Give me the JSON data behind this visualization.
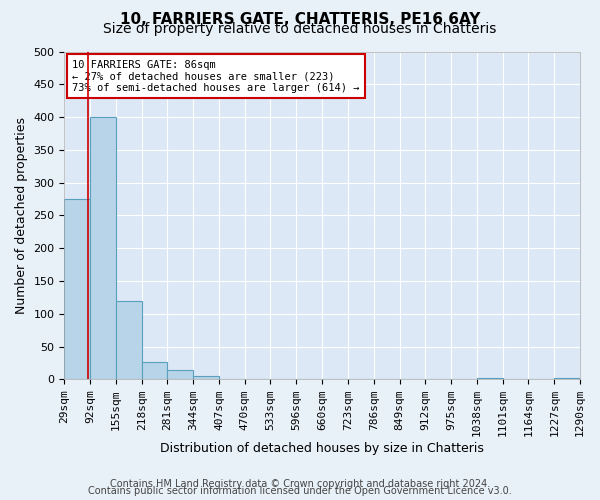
{
  "title": "10, FARRIERS GATE, CHATTERIS, PE16 6AY",
  "subtitle": "Size of property relative to detached houses in Chatteris",
  "xlabel": "Distribution of detached houses by size in Chatteris",
  "ylabel": "Number of detached properties",
  "bar_edges": [
    29,
    92,
    155,
    218,
    281,
    344,
    407,
    470,
    533,
    596,
    660,
    723,
    786,
    849,
    912,
    975,
    1038,
    1101,
    1164,
    1227,
    1290
  ],
  "bar_heights": [
    275,
    400,
    120,
    27,
    14,
    5,
    0,
    0,
    0,
    0,
    0,
    0,
    0,
    0,
    0,
    0,
    3,
    0,
    0,
    2
  ],
  "bar_color": "#b8d4e8",
  "bar_edge_color": "#5a9fc0",
  "property_line_x": 86,
  "property_line_color": "#cc0000",
  "ylim": [
    0,
    500
  ],
  "yticks": [
    0,
    50,
    100,
    150,
    200,
    250,
    300,
    350,
    400,
    450,
    500
  ],
  "tick_labels": [
    "29sqm",
    "92sqm",
    "155sqm",
    "218sqm",
    "281sqm",
    "344sqm",
    "407sqm",
    "470sqm",
    "533sqm",
    "596sqm",
    "660sqm",
    "723sqm",
    "786sqm",
    "849sqm",
    "912sqm",
    "975sqm",
    "1038sqm",
    "1101sqm",
    "1164sqm",
    "1227sqm",
    "1290sqm"
  ],
  "annotation_box_text": "10 FARRIERS GATE: 86sqm\n← 27% of detached houses are smaller (223)\n73% of semi-detached houses are larger (614) →",
  "annotation_box_color": "#cc0000",
  "bg_color": "#e8f0f8",
  "plot_bg_color": "#dce8f5",
  "footer_line1": "Contains HM Land Registry data © Crown copyright and database right 2024.",
  "footer_line2": "Contains public sector information licensed under the Open Government Licence v3.0.",
  "grid_color": "#ffffff",
  "title_fontsize": 11,
  "subtitle_fontsize": 10,
  "axis_label_fontsize": 9,
  "tick_fontsize": 8,
  "footer_fontsize": 7
}
